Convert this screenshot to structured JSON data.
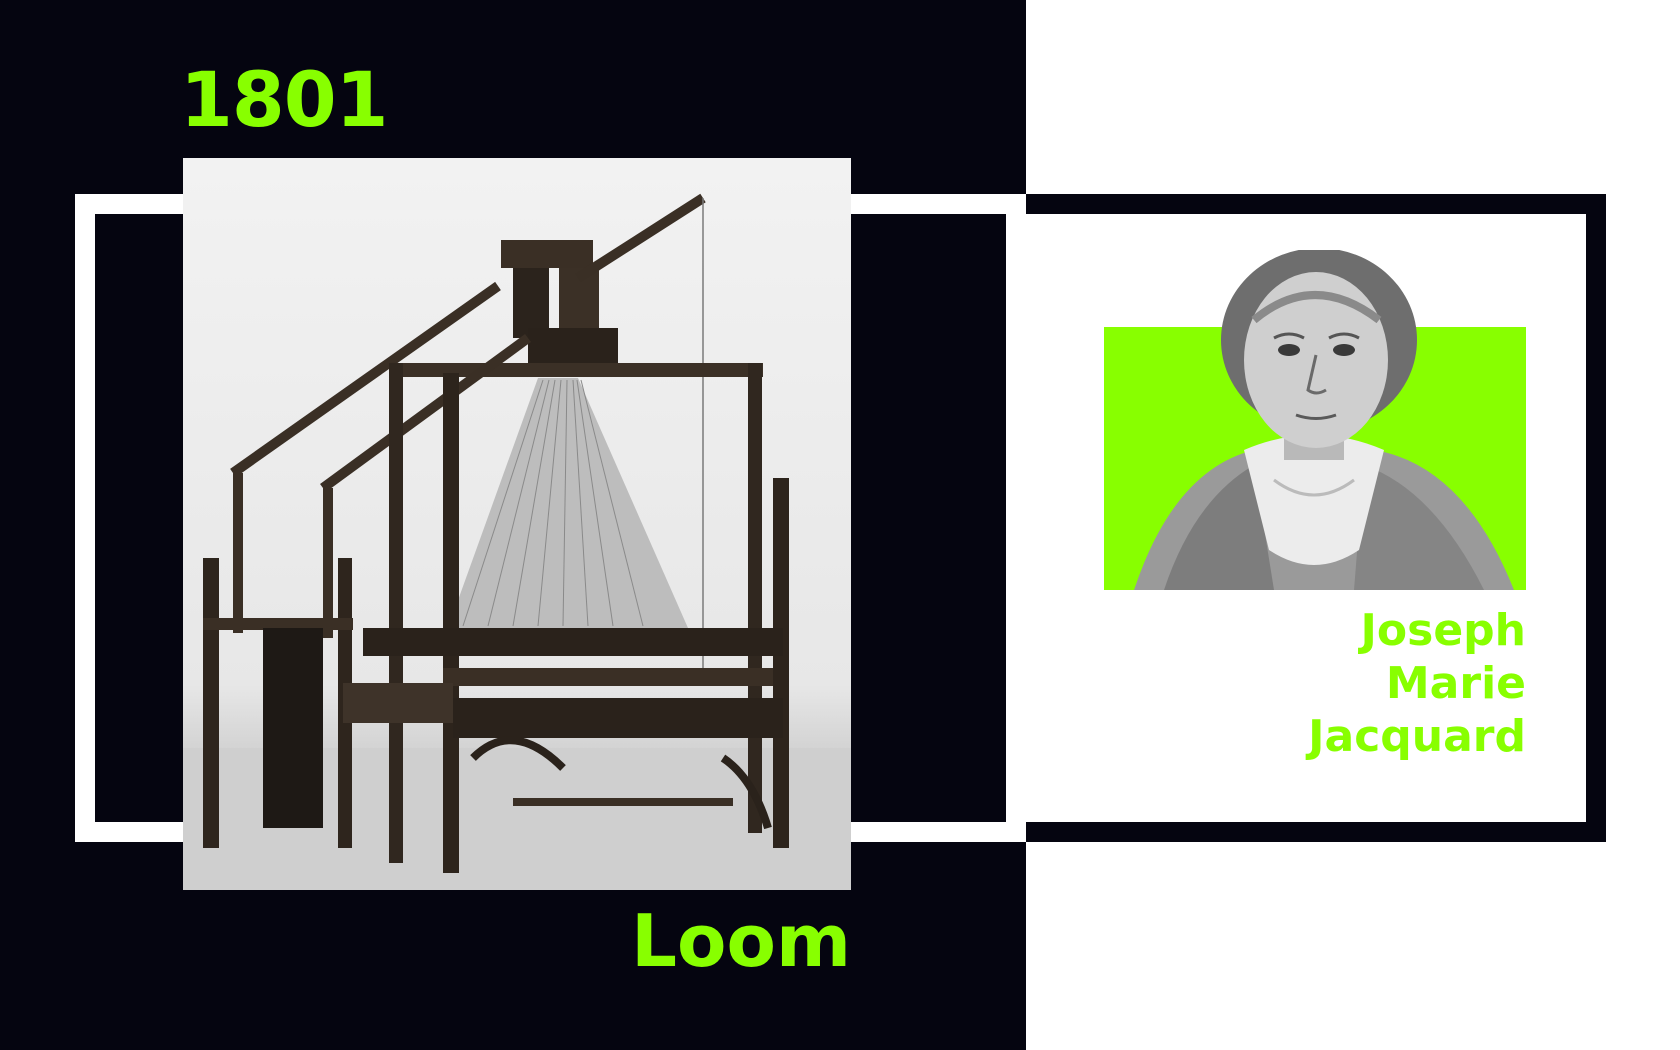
{
  "year": "1801",
  "invention": "Loom",
  "inventor": {
    "first": "Joseph",
    "middle": "Marie",
    "last": "Jacquard"
  },
  "images": {
    "loom_photo": "loom-machine-photo",
    "portrait": "jacquard-portrait-engraving"
  },
  "colors": {
    "accent": "#88ff00",
    "dark": "#050510",
    "light": "#ffffff"
  }
}
